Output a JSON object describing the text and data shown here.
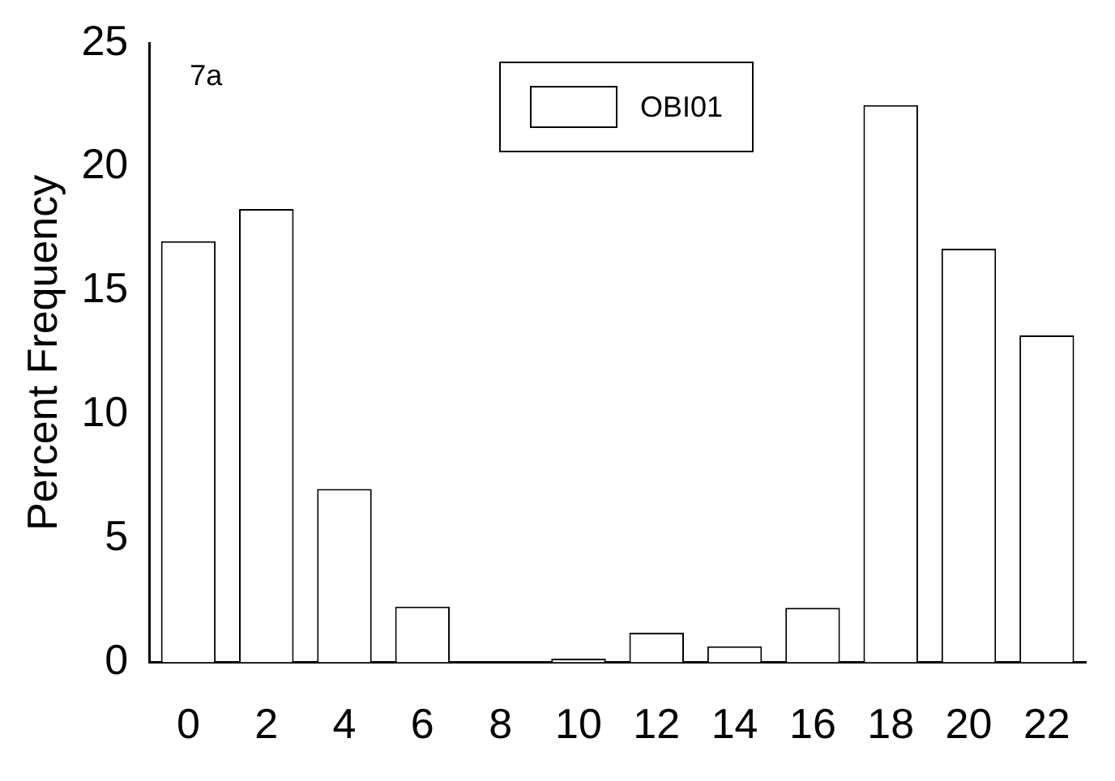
{
  "chart_data": {
    "type": "bar",
    "ylabel": "Percent Frequency",
    "annotations": [
      "7a"
    ],
    "categories": [
      "0",
      "2",
      "4",
      "6",
      "8",
      "10",
      "12",
      "14",
      "16",
      "18",
      "20",
      "22"
    ],
    "series": [
      {
        "name": "OBI01",
        "color": "#ffffff",
        "values": [
          17.0,
          18.3,
          7.0,
          2.25,
          0,
          0.15,
          1.2,
          0.65,
          2.2,
          22.5,
          16.7,
          13.2
        ]
      }
    ],
    "ylim": [
      0,
      25
    ],
    "yticks": [
      0,
      5,
      10,
      15,
      20,
      25
    ],
    "grid": false,
    "legend": "top"
  }
}
